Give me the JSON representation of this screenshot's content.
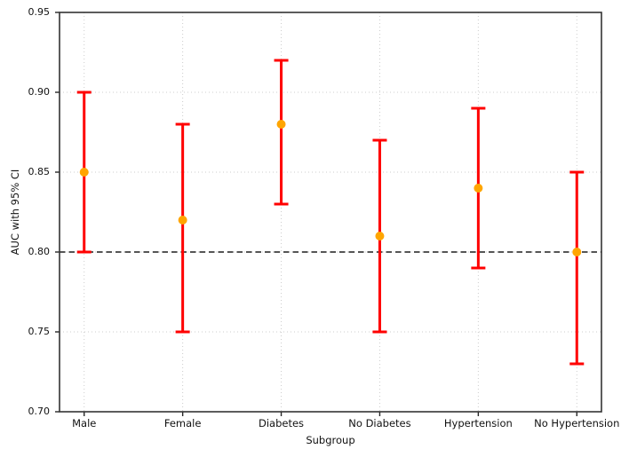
{
  "figure": {
    "background": "#ffffff"
  },
  "chart_data": {
    "type": "scatter",
    "subtype": "errorbar",
    "title": "",
    "xlabel": "Subgroup",
    "ylabel": "AUC with 95% CI",
    "categories": [
      "Male",
      "Female",
      "Diabetes",
      "No Diabetes",
      "Hypertension",
      "No Hypertension"
    ],
    "series": [
      {
        "name": "AUC",
        "values": [
          0.85,
          0.82,
          0.88,
          0.81,
          0.84,
          0.8
        ],
        "ci_low": [
          0.8,
          0.75,
          0.83,
          0.75,
          0.79,
          0.73
        ],
        "ci_high": [
          0.9,
          0.88,
          0.92,
          0.87,
          0.89,
          0.85
        ]
      }
    ],
    "ylim": [
      0.7,
      0.95
    ],
    "yticks": [
      0.7,
      0.75,
      0.8,
      0.85,
      0.9,
      0.95
    ],
    "ytick_labels": [
      "0.70",
      "0.75",
      "0.80",
      "0.85",
      "0.90",
      "0.95"
    ],
    "reference_line": {
      "y": 0.8,
      "style": "dashed"
    },
    "grid": {
      "visible": true,
      "style": "dotted",
      "axes": "both"
    },
    "legend": {
      "visible": false
    },
    "marker": "circle",
    "colors": {
      "error_bar": "#ff0000",
      "marker": "#ffa500",
      "reference_line": "#555555",
      "grid": "#cccccc",
      "spine": "#333333",
      "tick": "#262626",
      "text": "#111111"
    }
  }
}
